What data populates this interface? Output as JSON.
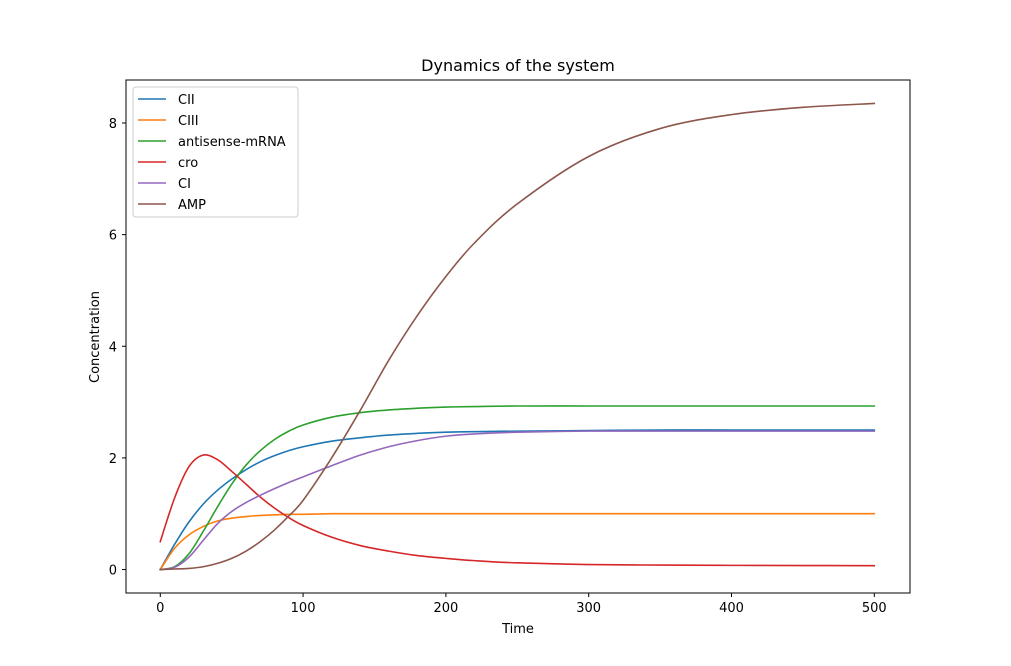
{
  "chart_data": {
    "type": "line",
    "title": "Dynamics of the system",
    "xlabel": "Time",
    "ylabel": "Concentration",
    "xlim": [
      -24,
      525
    ],
    "ylim": [
      -0.42,
      8.77
    ],
    "xticks": [
      0,
      100,
      200,
      300,
      400,
      500
    ],
    "yticks": [
      0,
      2,
      4,
      6,
      8
    ],
    "grid": false,
    "legend_position": "top-left",
    "x": [
      0,
      10,
      20,
      30,
      40,
      50,
      60,
      70,
      80,
      90,
      100,
      120,
      140,
      160,
      180,
      200,
      220,
      250,
      300,
      350,
      400,
      450,
      500
    ],
    "series": [
      {
        "name": "CII",
        "color": "#1f77b4",
        "values": [
          0.0,
          0.45,
          0.85,
          1.17,
          1.42,
          1.62,
          1.79,
          1.93,
          2.04,
          2.13,
          2.2,
          2.3,
          2.36,
          2.41,
          2.44,
          2.46,
          2.47,
          2.48,
          2.49,
          2.5,
          2.5,
          2.5,
          2.5
        ]
      },
      {
        "name": "CIII",
        "color": "#ff7f0e",
        "values": [
          0.0,
          0.38,
          0.62,
          0.77,
          0.87,
          0.92,
          0.95,
          0.97,
          0.98,
          0.99,
          0.99,
          1.0,
          1.0,
          1.0,
          1.0,
          1.0,
          1.0,
          1.0,
          1.0,
          1.0,
          1.0,
          1.0,
          1.0
        ]
      },
      {
        "name": "antisense-mRNA",
        "color": "#2ca02c",
        "values": [
          0.0,
          0.05,
          0.28,
          0.68,
          1.12,
          1.53,
          1.87,
          2.13,
          2.33,
          2.48,
          2.59,
          2.73,
          2.81,
          2.86,
          2.89,
          2.91,
          2.92,
          2.93,
          2.93,
          2.93,
          2.93,
          2.93,
          2.93
        ]
      },
      {
        "name": "cro",
        "color": "#d62728",
        "values": [
          0.5,
          1.28,
          1.84,
          2.05,
          1.97,
          1.76,
          1.53,
          1.3,
          1.1,
          0.93,
          0.79,
          0.58,
          0.43,
          0.33,
          0.25,
          0.2,
          0.16,
          0.12,
          0.09,
          0.08,
          0.075,
          0.072,
          0.07
        ]
      },
      {
        "name": "CI",
        "color": "#9467bd",
        "values": [
          0.0,
          0.04,
          0.22,
          0.52,
          0.82,
          1.04,
          1.2,
          1.33,
          1.45,
          1.56,
          1.66,
          1.86,
          2.05,
          2.2,
          2.31,
          2.39,
          2.43,
          2.46,
          2.48,
          2.48,
          2.48,
          2.48,
          2.48
        ]
      },
      {
        "name": "AMP",
        "color": "#8c564b",
        "values": [
          0.0,
          0.01,
          0.02,
          0.05,
          0.11,
          0.2,
          0.33,
          0.5,
          0.71,
          0.96,
          1.24,
          2.0,
          2.85,
          3.75,
          4.55,
          5.25,
          5.85,
          6.55,
          7.4,
          7.9,
          8.15,
          8.28,
          8.35
        ]
      }
    ]
  }
}
